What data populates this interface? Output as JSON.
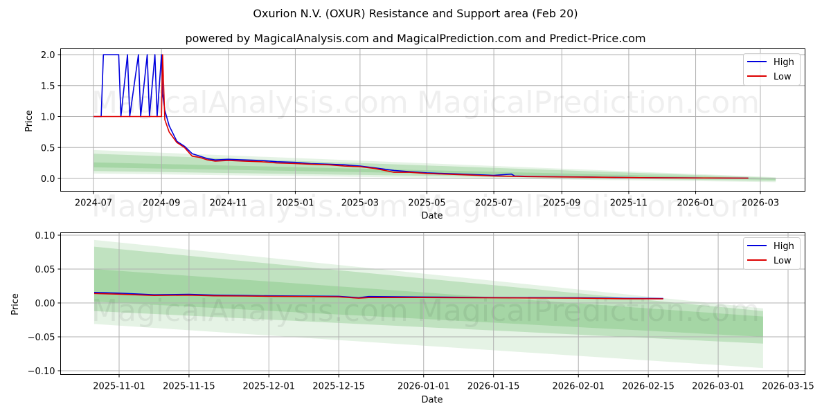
{
  "header": {
    "title": "Oxurion N.V. (OXUR) Resistance and Support area (Feb 20)",
    "subtitle": "powered by MagicalAnalysis.com and MagicalPrediction.com and Predict-Price.com"
  },
  "watermarks": [
    "MagicalAnalysis.com",
    "MagicalPrediction.com"
  ],
  "colors": {
    "high": "#0000dd",
    "low": "#dd0000",
    "band": "#2ca02c",
    "grid": "#b0b0b0"
  },
  "chart_data": [
    {
      "type": "line",
      "title": "Full history",
      "xlabel": "Date",
      "ylabel": "Price",
      "ylim": [
        -0.2,
        2.08
      ],
      "grid": true,
      "legend_position": "upper right",
      "xticks": [
        "2024-07",
        "2024-09",
        "2024-11",
        "2025-01",
        "2025-03",
        "2025-05",
        "2025-07",
        "2025-09",
        "2025-11",
        "2026-01",
        "2026-03"
      ],
      "yticks": [
        "0.0",
        "0.5",
        "1.0",
        "1.5",
        "2.0"
      ],
      "series": [
        {
          "name": "High",
          "x": [
            "2024-07-01",
            "2024-07-08",
            "2024-07-10",
            "2024-07-24",
            "2024-07-26",
            "2024-08-01",
            "2024-08-03",
            "2024-08-11",
            "2024-08-13",
            "2024-08-19",
            "2024-08-21",
            "2024-08-26",
            "2024-08-28",
            "2024-09-01",
            "2024-09-02",
            "2024-09-04",
            "2024-09-08",
            "2024-09-15",
            "2024-09-22",
            "2024-09-29",
            "2024-10-06",
            "2024-10-13",
            "2024-10-20",
            "2024-11-01",
            "2024-11-15",
            "2024-12-01",
            "2024-12-15",
            "2025-01-01",
            "2025-01-15",
            "2025-02-01",
            "2025-02-15",
            "2025-03-01",
            "2025-03-15",
            "2025-04-01",
            "2025-04-15",
            "2025-05-01",
            "2025-06-01",
            "2025-07-01",
            "2025-07-17",
            "2025-07-20",
            "2025-08-01",
            "2025-09-01",
            "2025-10-01",
            "2025-11-01",
            "2025-12-01",
            "2026-01-01",
            "2026-02-01",
            "2026-02-18"
          ],
          "values": [
            1.0,
            1.0,
            2.0,
            2.0,
            1.0,
            2.0,
            1.0,
            2.0,
            1.0,
            2.0,
            1.0,
            2.0,
            1.0,
            2.0,
            1.37,
            1.1,
            0.85,
            0.6,
            0.52,
            0.4,
            0.36,
            0.32,
            0.3,
            0.31,
            0.3,
            0.29,
            0.27,
            0.26,
            0.24,
            0.23,
            0.22,
            0.2,
            0.17,
            0.13,
            0.11,
            0.09,
            0.07,
            0.05,
            0.07,
            0.04,
            0.035,
            0.028,
            0.022,
            0.015,
            0.011,
            0.009,
            0.007,
            0.006
          ]
        },
        {
          "name": "Low",
          "x": [
            "2024-07-01",
            "2024-09-01",
            "2024-09-02",
            "2024-09-04",
            "2024-09-08",
            "2024-09-15",
            "2024-09-22",
            "2024-09-29",
            "2024-10-06",
            "2024-10-13",
            "2024-10-20",
            "2024-11-01",
            "2024-11-15",
            "2024-12-01",
            "2024-12-15",
            "2025-01-01",
            "2025-01-15",
            "2025-02-01",
            "2025-02-15",
            "2025-03-01",
            "2025-03-15",
            "2025-04-01",
            "2025-04-15",
            "2025-05-01",
            "2025-06-01",
            "2025-07-01",
            "2025-08-01",
            "2025-09-01",
            "2025-10-01",
            "2025-11-01",
            "2025-12-01",
            "2026-01-01",
            "2026-02-01",
            "2026-02-18"
          ],
          "values": [
            1.0,
            1.0,
            2.0,
            0.95,
            0.75,
            0.58,
            0.5,
            0.36,
            0.34,
            0.3,
            0.28,
            0.29,
            0.28,
            0.27,
            0.25,
            0.24,
            0.23,
            0.22,
            0.2,
            0.19,
            0.16,
            0.1,
            0.1,
            0.08,
            0.06,
            0.04,
            0.03,
            0.025,
            0.02,
            0.014,
            0.01,
            0.008,
            0.007,
            0.006
          ]
        }
      ],
      "bands": [
        {
          "name": "outer",
          "x": [
            "2024-07-01",
            "2026-03-15"
          ],
          "upper": [
            0.46,
            0.02
          ],
          "lower": [
            0.08,
            -0.06
          ],
          "opacity": 0.12
        },
        {
          "name": "mid",
          "x": [
            "2024-07-01",
            "2026-03-15"
          ],
          "upper": [
            0.4,
            0.01
          ],
          "lower": [
            0.12,
            -0.04
          ],
          "opacity": 0.2
        },
        {
          "name": "inner",
          "x": [
            "2024-07-01",
            "2026-03-15"
          ],
          "upper": [
            0.26,
            0.0
          ],
          "lower": [
            0.18,
            -0.02
          ],
          "opacity": 0.18
        }
      ]
    },
    {
      "type": "line",
      "title": "Recent zoom",
      "xlabel": "Date",
      "ylabel": "Price",
      "ylim": [
        -0.105,
        0.102
      ],
      "grid": true,
      "legend_position": "upper right",
      "xticks": [
        "2025-11-01",
        "2025-11-15",
        "2025-12-01",
        "2025-12-15",
        "2026-01-01",
        "2026-01-15",
        "2026-02-01",
        "2026-02-15",
        "2026-03-01",
        "2026-03-15"
      ],
      "yticks": [
        "0.10",
        "0.05",
        "0.00",
        "−0.05",
        "−0.10"
      ],
      "series": [
        {
          "name": "High",
          "x": [
            "2025-10-27",
            "2025-11-01",
            "2025-11-08",
            "2025-11-15",
            "2025-11-20",
            "2025-11-26",
            "2025-12-01",
            "2025-12-08",
            "2025-12-15",
            "2025-12-19",
            "2025-12-21",
            "2026-01-01",
            "2026-01-15",
            "2026-02-01",
            "2026-02-10",
            "2026-02-18"
          ],
          "values": [
            0.0155,
            0.0145,
            0.012,
            0.0128,
            0.0115,
            0.011,
            0.0105,
            0.0102,
            0.0098,
            0.0078,
            0.0095,
            0.0088,
            0.008,
            0.0075,
            0.0068,
            0.0065
          ]
        },
        {
          "name": "Low",
          "x": [
            "2025-10-27",
            "2025-11-01",
            "2025-11-08",
            "2025-11-15",
            "2025-11-20",
            "2025-11-26",
            "2025-12-01",
            "2025-12-08",
            "2025-12-15",
            "2025-12-19",
            "2025-12-21",
            "2026-01-01",
            "2026-01-15",
            "2026-02-01",
            "2026-02-10",
            "2026-02-18"
          ],
          "values": [
            0.014,
            0.013,
            0.011,
            0.0115,
            0.0105,
            0.0102,
            0.0098,
            0.0095,
            0.009,
            0.007,
            0.008,
            0.008,
            0.0075,
            0.007,
            0.0062,
            0.006
          ]
        }
      ],
      "bands": [
        {
          "name": "outer",
          "x": [
            "2025-10-27",
            "2026-03-10"
          ],
          "upper": [
            0.093,
            -0.008
          ],
          "lower": [
            -0.031,
            -0.096
          ],
          "opacity": 0.12
        },
        {
          "name": "mid",
          "x": [
            "2025-10-27",
            "2026-03-10"
          ],
          "upper": [
            0.083,
            -0.012
          ],
          "lower": [
            -0.012,
            -0.06
          ],
          "opacity": 0.2
        },
        {
          "name": "inner",
          "x": [
            "2025-10-27",
            "2026-03-10"
          ],
          "upper": [
            0.05,
            -0.02
          ],
          "lower": [
            0.002,
            -0.05
          ],
          "opacity": 0.18
        }
      ]
    }
  ]
}
